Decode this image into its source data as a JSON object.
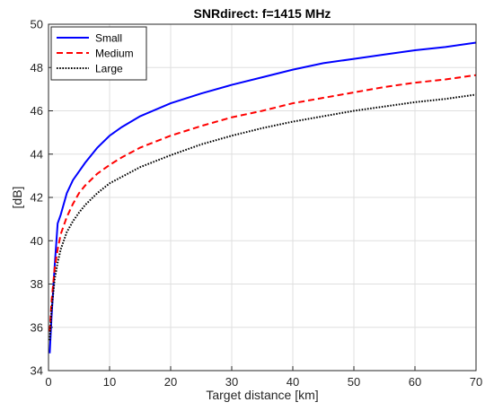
{
  "chart_data": {
    "type": "line",
    "title": "SNRdirect: f=1415 MHz",
    "xlabel": "Target distance [km]",
    "ylabel": "[dB]",
    "xlim": [
      0,
      70
    ],
    "ylim": [
      34,
      50
    ],
    "xticks": [
      0,
      10,
      20,
      30,
      40,
      50,
      60,
      70
    ],
    "yticks": [
      34,
      36,
      38,
      40,
      42,
      44,
      46,
      48,
      50
    ],
    "grid": true,
    "legend_position": "top-left",
    "series": [
      {
        "name": "Small",
        "color": "#0000ff",
        "style": "solid",
        "points": [
          [
            0.2,
            34.8
          ],
          [
            0.5,
            36.5
          ],
          [
            1,
            38.8
          ],
          [
            1.5,
            40.8
          ],
          [
            2,
            41.2
          ],
          [
            3,
            42.2
          ],
          [
            4,
            42.8
          ],
          [
            5,
            43.2
          ],
          [
            6,
            43.6
          ],
          [
            8,
            44.3
          ],
          [
            10,
            44.85
          ],
          [
            12,
            45.25
          ],
          [
            15,
            45.75
          ],
          [
            20,
            46.35
          ],
          [
            25,
            46.8
          ],
          [
            30,
            47.2
          ],
          [
            35,
            47.55
          ],
          [
            40,
            47.9
          ],
          [
            45,
            48.2
          ],
          [
            50,
            48.4
          ],
          [
            55,
            48.6
          ],
          [
            60,
            48.8
          ],
          [
            65,
            48.95
          ],
          [
            70,
            49.15
          ]
        ]
      },
      {
        "name": "Medium",
        "color": "#ff0000",
        "style": "dashed",
        "points": [
          [
            0.2,
            35.8
          ],
          [
            0.5,
            37.2
          ],
          [
            1,
            38.7
          ],
          [
            1.5,
            39.6
          ],
          [
            2,
            40.3
          ],
          [
            3,
            41.1
          ],
          [
            4,
            41.7
          ],
          [
            5,
            42.2
          ],
          [
            6,
            42.55
          ],
          [
            8,
            43.1
          ],
          [
            10,
            43.5
          ],
          [
            12,
            43.85
          ],
          [
            15,
            44.3
          ],
          [
            20,
            44.85
          ],
          [
            25,
            45.3
          ],
          [
            30,
            45.7
          ],
          [
            35,
            46.0
          ],
          [
            40,
            46.35
          ],
          [
            45,
            46.6
          ],
          [
            50,
            46.85
          ],
          [
            55,
            47.1
          ],
          [
            60,
            47.3
          ],
          [
            65,
            47.45
          ],
          [
            70,
            47.65
          ]
        ]
      },
      {
        "name": "Large",
        "color": "#000000",
        "style": "dotted",
        "points": [
          [
            0.2,
            35.4
          ],
          [
            0.5,
            36.8
          ],
          [
            1,
            38.2
          ],
          [
            1.5,
            39.0
          ],
          [
            2,
            39.6
          ],
          [
            3,
            40.4
          ],
          [
            4,
            40.9
          ],
          [
            5,
            41.3
          ],
          [
            6,
            41.65
          ],
          [
            8,
            42.2
          ],
          [
            10,
            42.65
          ],
          [
            12,
            42.95
          ],
          [
            15,
            43.4
          ],
          [
            20,
            43.95
          ],
          [
            25,
            44.45
          ],
          [
            30,
            44.85
          ],
          [
            35,
            45.2
          ],
          [
            40,
            45.5
          ],
          [
            45,
            45.75
          ],
          [
            50,
            46.0
          ],
          [
            55,
            46.2
          ],
          [
            60,
            46.4
          ],
          [
            65,
            46.55
          ],
          [
            70,
            46.75
          ]
        ]
      }
    ]
  }
}
